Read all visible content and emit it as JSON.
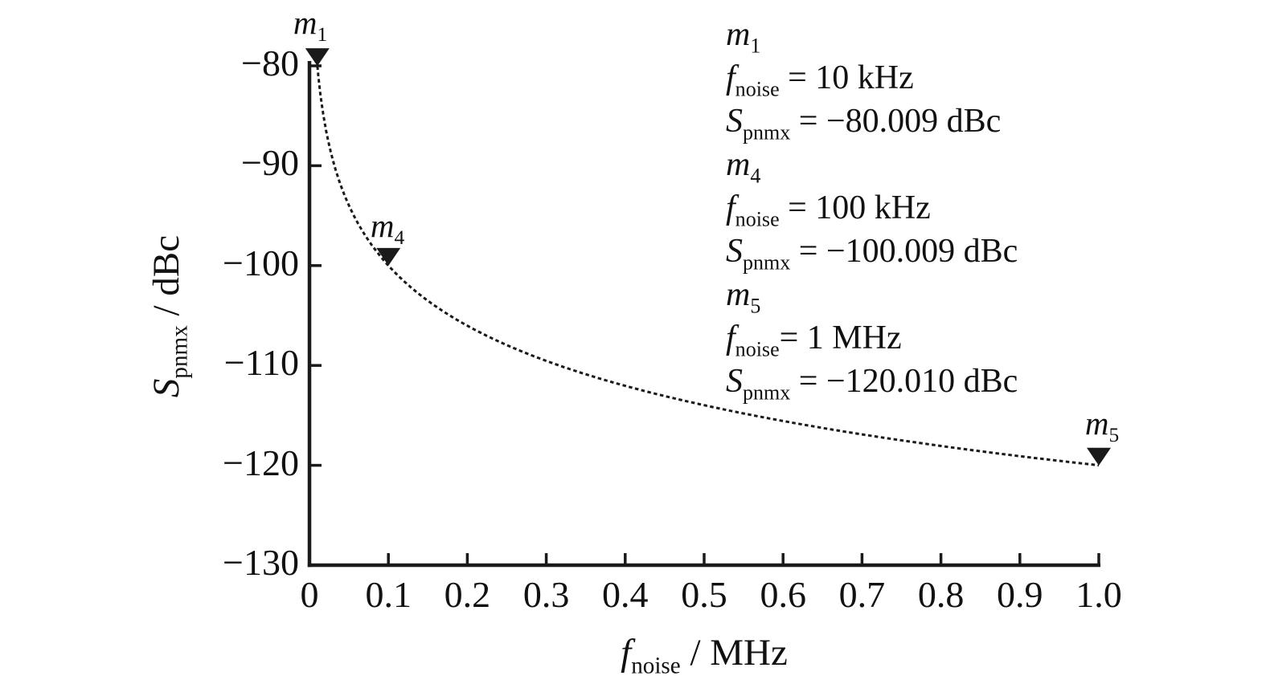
{
  "figure": {
    "bg": "#ffffff",
    "ink": "#1a1a1a"
  },
  "chart_data": {
    "type": "line",
    "title": "",
    "xlabel": {
      "var": "f",
      "sub": "noise",
      "unit": " / MHz"
    },
    "ylabel": {
      "var": "S",
      "sub": "pnmx",
      "unit": " / dBc"
    },
    "xlim": [
      0,
      1.0
    ],
    "ylim": [
      -130,
      -80
    ],
    "grid": false,
    "legend": "none",
    "line_style": "dashed black curve",
    "curve_model": "S_pnmx = -120 - 20*log10(f_noise/MHz)  (-20 dBc per decade, plotted on linear frequency axis from 0.01 to 1 MHz)",
    "curve_domain_mhz": [
      0.01,
      1.0
    ],
    "curve_points": [
      [
        0.01,
        -80.0
      ],
      [
        0.02,
        -86.02
      ],
      [
        0.03,
        -89.54
      ],
      [
        0.05,
        -93.98
      ],
      [
        0.07,
        -96.9
      ],
      [
        0.1,
        -100.0
      ],
      [
        0.15,
        -103.52
      ],
      [
        0.2,
        -106.02
      ],
      [
        0.3,
        -109.54
      ],
      [
        0.4,
        -112.04
      ],
      [
        0.5,
        -113.98
      ],
      [
        0.6,
        -115.56
      ],
      [
        0.7,
        -116.9
      ],
      [
        0.8,
        -118.06
      ],
      [
        0.9,
        -119.08
      ],
      [
        1.0,
        -120.0
      ]
    ],
    "x_ticks": [
      {
        "v": 0,
        "label": "0",
        "mark": false
      },
      {
        "v": 0.1,
        "label": "0.1"
      },
      {
        "v": 0.2,
        "label": "0.2"
      },
      {
        "v": 0.3,
        "label": "0.3"
      },
      {
        "v": 0.4,
        "label": "0.4"
      },
      {
        "v": 0.5,
        "label": "0.5"
      },
      {
        "v": 0.6,
        "label": "0.6"
      },
      {
        "v": 0.7,
        "label": "0.7"
      },
      {
        "v": 0.8,
        "label": "0.8"
      },
      {
        "v": 0.9,
        "label": "0.9"
      },
      {
        "v": 1.0,
        "label": "1.0"
      }
    ],
    "y_ticks": [
      {
        "v": -80,
        "label": "−80"
      },
      {
        "v": -90,
        "label": "−90"
      },
      {
        "v": -100,
        "label": "−100"
      },
      {
        "v": -110,
        "label": "−110"
      },
      {
        "v": -120,
        "label": "−120"
      },
      {
        "v": -130,
        "label": "−130",
        "mark": false
      }
    ],
    "markers": [
      {
        "name": "m",
        "sub": "1",
        "f_mhz": 0.01,
        "s_dbc": -80.009
      },
      {
        "name": "m",
        "sub": "4",
        "f_mhz": 0.1,
        "s_dbc": -100.009
      },
      {
        "name": "m",
        "sub": "5",
        "f_mhz": 1.0,
        "s_dbc": -120.01
      }
    ]
  },
  "annotation": {
    "f_var": "f",
    "f_sub": "noise",
    "s_var": "S",
    "s_sub": "pnmx",
    "entries": [
      {
        "name": "m",
        "sub": "1",
        "f_rest": " = 10 kHz",
        "s_rest": " = −80.009 dBc"
      },
      {
        "name": "m",
        "sub": "4",
        "f_rest": " = 100 kHz",
        "s_rest": " = −100.009 dBc"
      },
      {
        "name": "m",
        "sub": "5",
        "f_rest": "= 1 MHz",
        "s_rest": " = −120.010 dBc"
      }
    ]
  }
}
